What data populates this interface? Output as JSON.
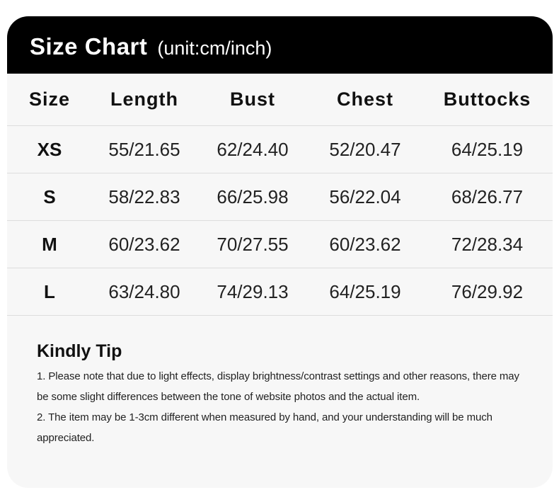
{
  "header": {
    "title": "Size Chart",
    "unit": "(unit:cm/inch)"
  },
  "table": {
    "columns": [
      "Size",
      "Length",
      "Bust",
      "Chest",
      "Buttocks"
    ],
    "rows": [
      [
        "XS",
        "55/21.65",
        "62/24.40",
        "52/20.47",
        "64/25.19"
      ],
      [
        "S",
        "58/22.83",
        "66/25.98",
        "56/22.04",
        "68/26.77"
      ],
      [
        "M",
        "60/23.62",
        "70/27.55",
        "60/23.62",
        "72/28.34"
      ],
      [
        "L",
        "63/24.80",
        "74/29.13",
        "64/25.19",
        "76/29.92"
      ]
    ]
  },
  "tip": {
    "title": "Kindly Tip",
    "items": [
      "1. Please note that due to light effects, display brightness/contrast settings and other reasons, there may be some slight differences between the tone of website photos and the actual item.",
      "2. The item may be 1-3cm different when measured by hand, and your understanding will be much appreciated."
    ]
  }
}
